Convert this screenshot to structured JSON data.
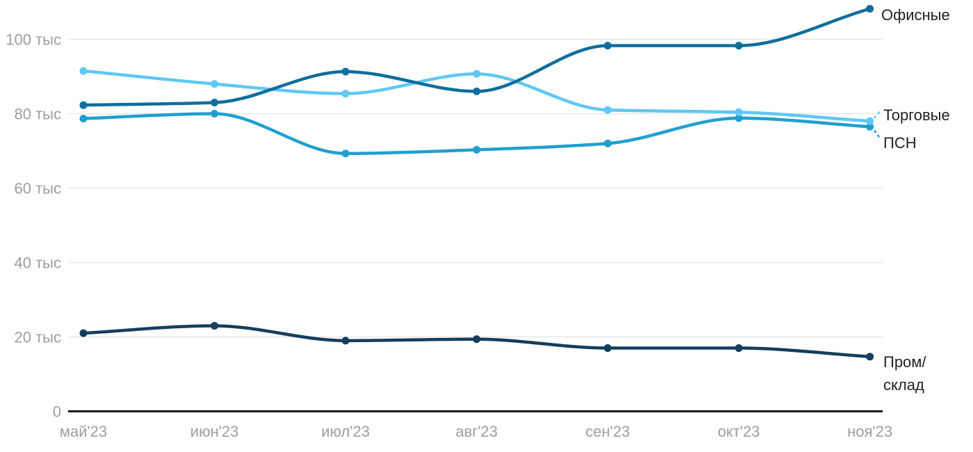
{
  "chart_data": {
    "type": "line",
    "x": [
      "май'23",
      "июн'23",
      "июл'23",
      "авг'23",
      "сен'23",
      "окт'23",
      "ноя'23"
    ],
    "unit": "тыс",
    "series": [
      {
        "name": "Пром/склад",
        "label": "Пром/\nсклад",
        "color": "#143e5c",
        "values": [
          21,
          23,
          19,
          19.4,
          17,
          17,
          14.7
        ]
      },
      {
        "name": "ПСН",
        "label": "ПСН",
        "color": "#209fd0",
        "values": [
          78.7,
          80,
          69.3,
          70.3,
          72,
          78.8,
          76.5
        ]
      },
      {
        "name": "Торговые",
        "label": "Торговые",
        "color": "#5fc8f5",
        "values": [
          91.5,
          88,
          85.4,
          90.7,
          81,
          80.4,
          78
        ]
      },
      {
        "name": "Офисные",
        "label": "Офисные",
        "color": "#0e6e9d",
        "values": [
          82.3,
          83,
          91.3,
          86,
          98.3,
          98.3,
          108.2
        ]
      }
    ],
    "y_ticks": [
      {
        "value": 0,
        "label": "0"
      },
      {
        "value": 20,
        "label": "20 тыс"
      },
      {
        "value": 40,
        "label": "40 тыс"
      },
      {
        "value": 60,
        "label": "60 тыс"
      },
      {
        "value": 80,
        "label": "80 тыс"
      },
      {
        "value": 100,
        "label": "100 тыс"
      }
    ],
    "ylim": [
      0,
      110
    ],
    "grid": "horizontal",
    "legend_position": "right-inline-labels"
  },
  "colors": {
    "background": "#ffffff",
    "axis_text": "#9e9e9e",
    "grid_line": "#e7e7e7",
    "zero_axis_line": "#1a1a1a",
    "label_text": "#212121"
  }
}
